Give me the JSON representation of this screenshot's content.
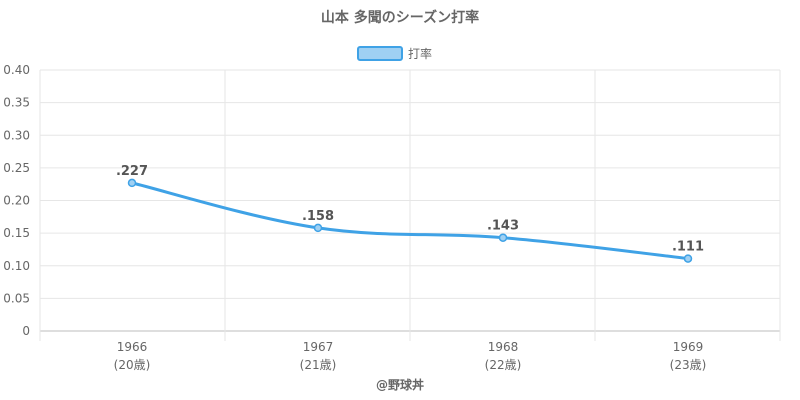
{
  "chart_data": {
    "type": "line",
    "title": "山本 多聞のシーズン打率",
    "legend": {
      "label": "打率",
      "position": "top"
    },
    "categories": [
      "1966",
      "1967",
      "1968",
      "1969"
    ],
    "category_sublabels": [
      "(20歳)",
      "(21歳)",
      "(22歳)",
      "(23歳)"
    ],
    "series": [
      {
        "name": "打率",
        "values": [
          0.227,
          0.158,
          0.143,
          0.111
        ],
        "labels": [
          ".227",
          ".158",
          ".143",
          ".111"
        ]
      }
    ],
    "ylim": [
      0,
      0.4
    ],
    "yticks": [
      "0",
      "0.05",
      "0.10",
      "0.15",
      "0.20",
      "0.25",
      "0.30",
      "0.35",
      "0.40"
    ],
    "grid": true,
    "colors": {
      "line": "#3fa2e6",
      "fill": "#9fd0f3",
      "grid": "#e6e6e6"
    }
  },
  "footer": "@野球丼"
}
